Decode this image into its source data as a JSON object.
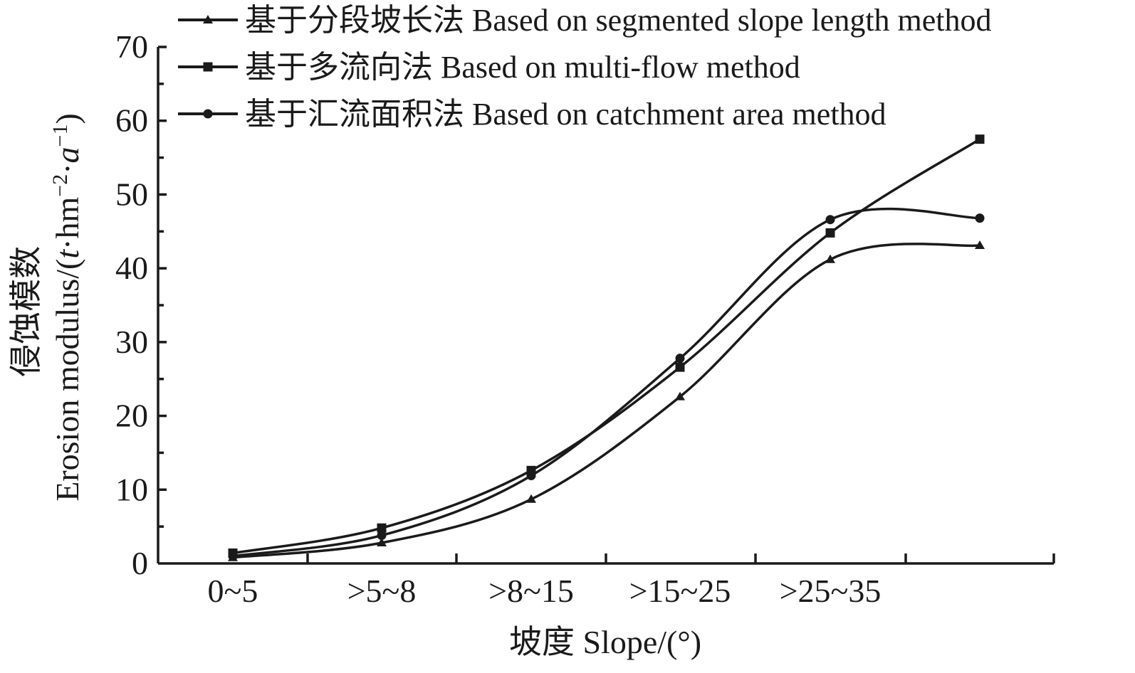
{
  "chart_data": {
    "type": "line",
    "categories": [
      "0~5",
      ">5~8",
      ">8~15",
      ">15~25",
      ">25~35",
      ""
    ],
    "series": [
      {
        "name": "基于分段坡长法 Based on segmented slope length method",
        "marker": "triangle",
        "values": [
          0.8,
          2.8,
          8.7,
          22.6,
          41.2,
          43.1
        ]
      },
      {
        "name": "基于多流向法 Based on multi-flow method",
        "marker": "square",
        "values": [
          1.4,
          4.8,
          12.6,
          26.6,
          44.8,
          57.5
        ]
      },
      {
        "name": "基于汇流面积法 Based on catchment area method",
        "marker": "circle",
        "values": [
          1.0,
          3.8,
          11.9,
          27.8,
          46.6,
          46.8
        ]
      }
    ],
    "xlabel": "坡度 Slope/(°)",
    "ylabel": "侵蚀模数 Erosion modulus/(t·hm⁻²·a⁻¹)",
    "ylabel_cn": "侵蚀模数",
    "ylabel_en": "Erosion modulus/(",
    "ylabel_unit_t": "t",
    "ylabel_unit_hm": "·hm",
    "ylabel_sup1": "−2",
    "ylabel_dot": "·",
    "ylabel_unit_a": "a",
    "ylabel_sup2": "−1",
    "ylabel_close": ")",
    "ylim": [
      0,
      70
    ],
    "yticks": [
      0,
      10,
      20,
      30,
      40,
      50,
      60,
      70
    ],
    "grid": false,
    "legend_position": "top"
  }
}
